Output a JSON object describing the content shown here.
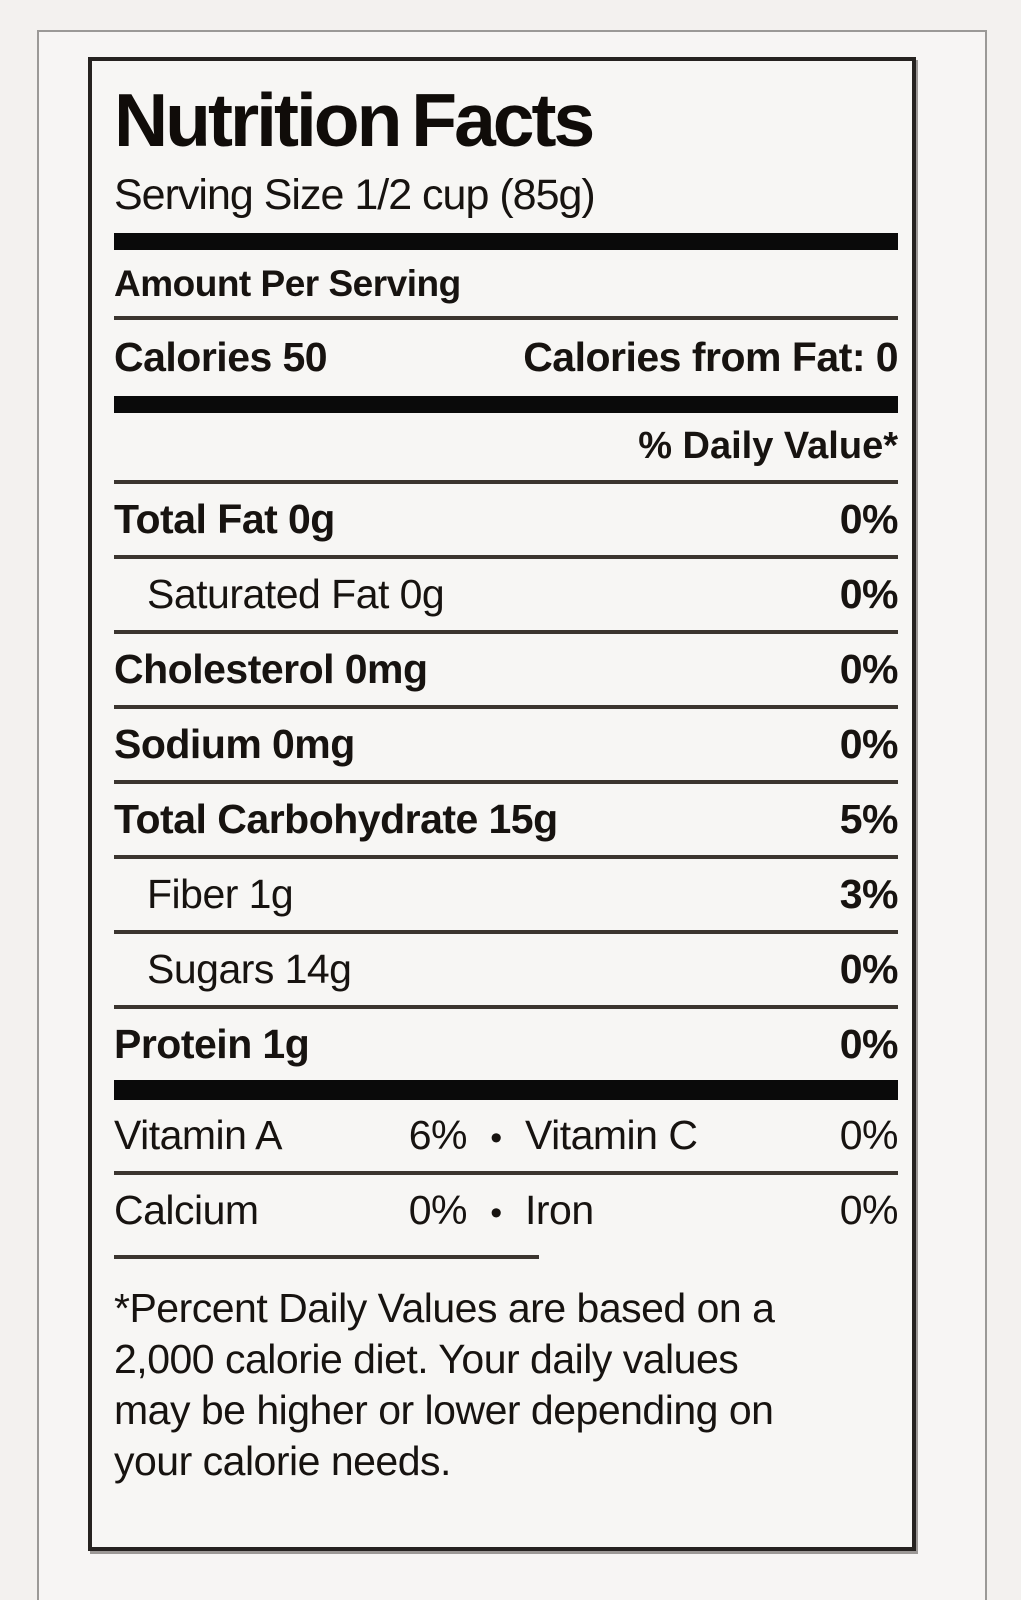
{
  "label": {
    "title": "Nutrition Facts",
    "serving_size": "Serving Size 1/2 cup (85g)",
    "amount_per_serving": "Amount Per Serving",
    "calories": {
      "label": "Calories",
      "value": "50"
    },
    "calories_from_fat": {
      "label": "Calories from Fat:",
      "value": "0"
    },
    "daily_value_header": "% Daily Value*",
    "nutrients": [
      {
        "name": "Total Fat",
        "amount": "0g",
        "dv": "0%"
      },
      {
        "name": "Saturated Fat",
        "amount": "0g",
        "dv": "0%"
      },
      {
        "name": "Cholesterol",
        "amount": "0mg",
        "dv": "0%"
      },
      {
        "name": "Sodium",
        "amount": "0mg",
        "dv": "0%"
      },
      {
        "name": "Total Carbohydrate",
        "amount": "15g",
        "dv": "5%"
      },
      {
        "name": "Fiber",
        "amount": "1g",
        "dv": "3%"
      },
      {
        "name": "Sugars",
        "amount": "14g",
        "dv": "0%"
      },
      {
        "name": "Protein",
        "amount": "1g",
        "dv": "0%"
      }
    ],
    "bullet": "•",
    "micronutrients": [
      {
        "name": "Vitamin A",
        "value": "6%",
        "name2": "Vitamin C",
        "value2": "0%"
      },
      {
        "name": "Calcium",
        "value": "0%",
        "name2": "Iron",
        "value2": "0%"
      }
    ],
    "footnote_lines": [
      "*Percent Daily Values are based on a",
      "2,000 calorie diet. Your daily values",
      "may be higher or lower depending on",
      "your calorie needs."
    ]
  },
  "colors": {
    "page_bg": "#f3f1ef",
    "frame_border": "#9b9997",
    "label_bg": "#f7f6f4",
    "label_border": "#262220",
    "bar": "#0a0a0a",
    "rule": "#3b352f",
    "text": "#171310"
  }
}
